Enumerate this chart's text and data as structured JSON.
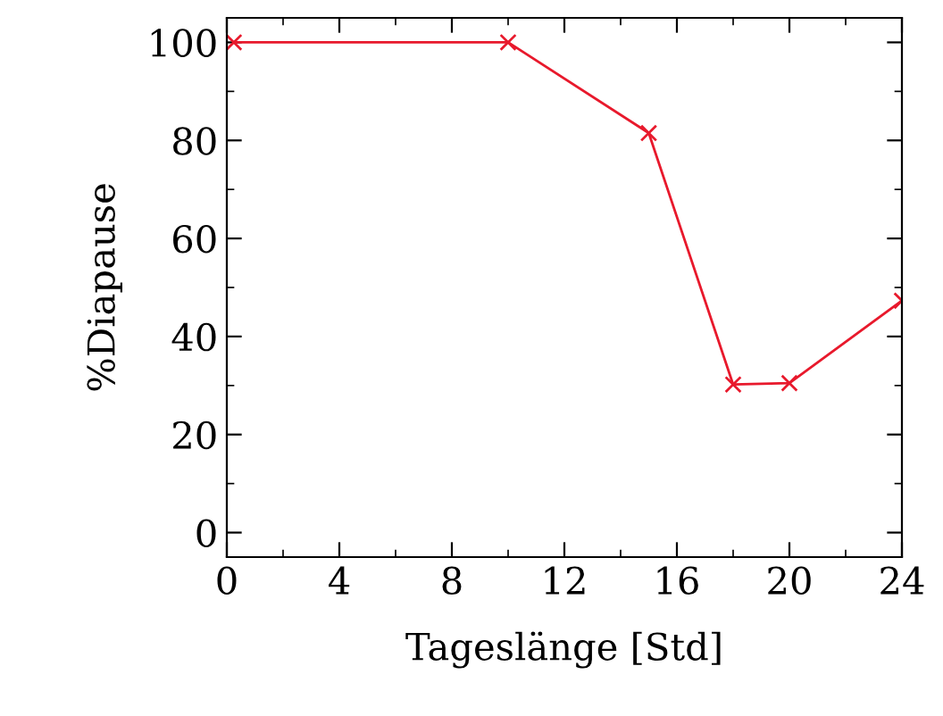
{
  "chart_data": {
    "type": "line",
    "xlabel": "Tageslänge [Std]",
    "ylabel": "%Diapause",
    "x": [
      0.25,
      10,
      15,
      18,
      20,
      24
    ],
    "series": [
      {
        "color": "#e8192c",
        "values": [
          100,
          100,
          81.5,
          30.2,
          30.5,
          47.3
        ]
      }
    ],
    "xlim": [
      0,
      24
    ],
    "xticks": [
      0,
      4,
      8,
      12,
      16,
      20,
      24
    ],
    "ylim": [
      -5,
      105
    ],
    "yticks": [
      0,
      20,
      40,
      60,
      80,
      100
    ],
    "grid": false,
    "legend": false,
    "marker": "cross",
    "line_style": "solid"
  }
}
